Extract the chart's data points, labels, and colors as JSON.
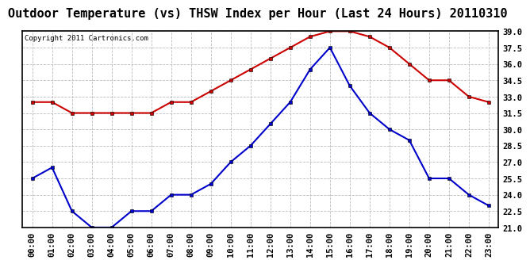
{
  "title": "Outdoor Temperature (vs) THSW Index per Hour (Last 24 Hours) 20110310",
  "copyright": "Copyright 2011 Cartronics.com",
  "hours": [
    "00:00",
    "01:00",
    "02:00",
    "03:00",
    "04:00",
    "05:00",
    "06:00",
    "07:00",
    "08:00",
    "09:00",
    "10:00",
    "11:00",
    "12:00",
    "13:00",
    "14:00",
    "15:00",
    "16:00",
    "17:00",
    "18:00",
    "19:00",
    "20:00",
    "21:00",
    "22:00",
    "23:00"
  ],
  "thsw": [
    32.5,
    32.5,
    31.5,
    31.5,
    31.5,
    31.5,
    31.5,
    32.5,
    32.5,
    33.5,
    34.5,
    35.5,
    36.5,
    37.5,
    38.5,
    39.0,
    39.0,
    38.5,
    37.5,
    36.0,
    34.5,
    34.5,
    33.0,
    32.5
  ],
  "temp": [
    25.5,
    26.5,
    22.5,
    21.0,
    21.0,
    22.5,
    22.5,
    24.0,
    24.0,
    25.0,
    27.0,
    28.5,
    30.5,
    32.5,
    35.5,
    37.5,
    34.0,
    31.5,
    30.0,
    29.0,
    25.5,
    25.5,
    24.0,
    23.0
  ],
  "ylim": [
    21.0,
    39.0
  ],
  "yticks": [
    21.0,
    22.5,
    24.0,
    25.5,
    27.0,
    28.5,
    30.0,
    31.5,
    33.0,
    34.5,
    36.0,
    37.5,
    39.0
  ],
  "thsw_color": "#cc0000",
  "temp_color": "#0000cc",
  "grid_color": "#bbbbbb",
  "title_fontsize": 11,
  "copyright_fontsize": 6.5,
  "tick_fontsize": 7.5,
  "marker_size": 3.5,
  "linewidth": 1.5
}
